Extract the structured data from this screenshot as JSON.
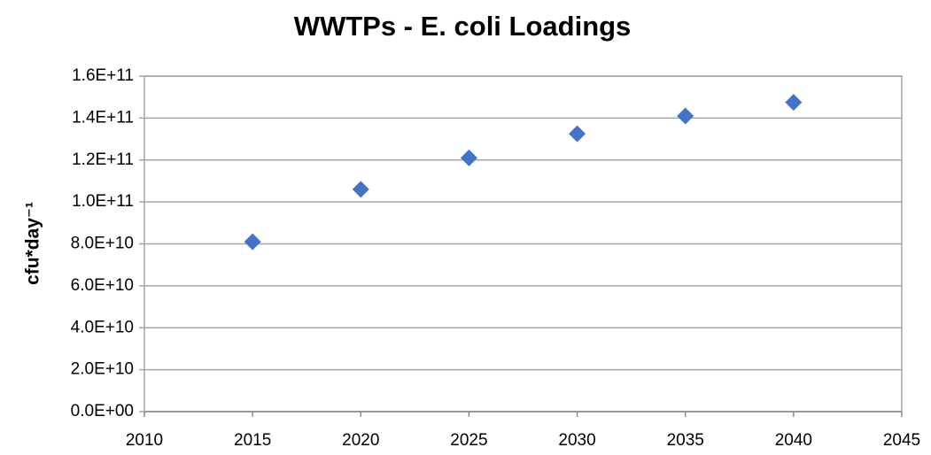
{
  "chart_data": {
    "type": "scatter",
    "title": "WWTPs -  E. coli Loadings",
    "y_label": "cfu*day⁻¹",
    "x": [
      2015,
      2020,
      2025,
      2030,
      2035,
      2040
    ],
    "series": [
      {
        "color": "#4472c4",
        "values": [
          81000000000,
          106000000000,
          121000000000,
          132500000000,
          141000000000,
          147500000000
        ]
      }
    ],
    "xlim": [
      2010,
      2045
    ],
    "xticks": [
      2010,
      2015,
      2020,
      2025,
      2030,
      2035,
      2040,
      2045
    ],
    "ylim": [
      0,
      160000000000
    ],
    "yticks": [
      {
        "value": 0,
        "label": "0.0E+00"
      },
      {
        "value": 20000000000,
        "label": "2.0E+10"
      },
      {
        "value": 40000000000,
        "label": "4.0E+10"
      },
      {
        "value": 60000000000,
        "label": "6.0E+10"
      },
      {
        "value": 80000000000,
        "label": "8.0E+10"
      },
      {
        "value": 100000000000,
        "label": "1.0E+11"
      },
      {
        "value": 120000000000,
        "label": "1.2E+11"
      },
      {
        "value": 140000000000,
        "label": "1.4E+11"
      },
      {
        "value": 160000000000,
        "label": "1.6E+11"
      }
    ],
    "grid": true
  }
}
